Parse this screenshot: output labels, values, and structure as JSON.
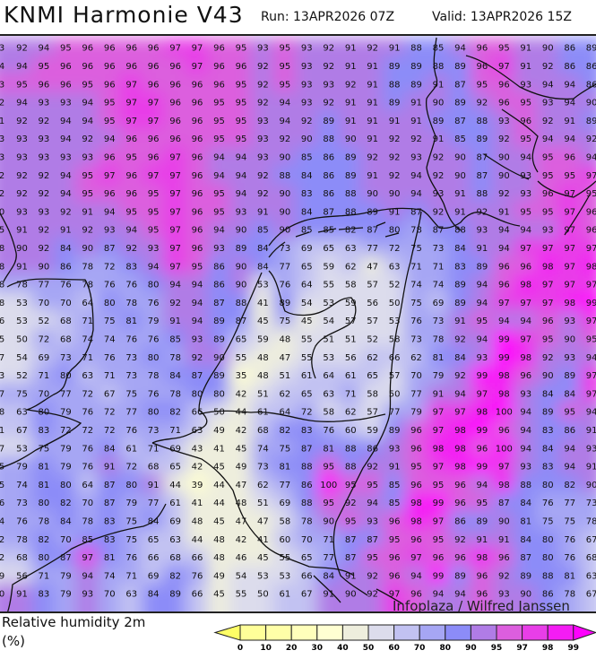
{
  "header": {
    "title": "KNMI Harmonie V43",
    "run": "Run: 13APR2026 07Z",
    "valid": "Valid: 13APR2026 15Z"
  },
  "legend": {
    "title": "Relative humidity 2m",
    "unit": "(%)",
    "ticks": [
      "0",
      "10",
      "20",
      "30",
      "40",
      "50",
      "60",
      "70",
      "80",
      "90",
      "95",
      "97",
      "98",
      "99"
    ],
    "colors": [
      "#ffff99",
      "#ffffa8",
      "#ffffbb",
      "#ffffd2",
      "#eeeedd",
      "#dcdcec",
      "#c2c2f2",
      "#a6a6f4",
      "#8c8cf8",
      "#b07ce6",
      "#dc5ede",
      "#e83ee8",
      "#f41cf4",
      "#ff00ff"
    ],
    "under_color": "#ffff66",
    "over_color": "#ff00ff"
  },
  "watermark": "Infoplaza / Wilfred Janssen",
  "grid": {
    "rows": [
      [
        "3",
        92,
        94,
        95,
        96,
        96,
        96,
        96,
        97,
        97,
        96,
        95,
        93,
        95,
        93,
        92,
        91,
        92,
        91,
        88,
        85,
        94,
        96,
        95,
        91,
        90,
        86,
        89
      ],
      [
        "4",
        94,
        95,
        96,
        96,
        96,
        96,
        96,
        96,
        97,
        96,
        96,
        92,
        95,
        93,
        92,
        91,
        91,
        89,
        89,
        88,
        89,
        96,
        97,
        91,
        92,
        86,
        86
      ],
      [
        "3",
        95,
        96,
        96,
        95,
        96,
        97,
        96,
        96,
        96,
        96,
        95,
        92,
        95,
        93,
        93,
        92,
        91,
        88,
        89,
        91,
        87,
        95,
        96,
        93,
        94,
        94,
        86
      ],
      [
        "2",
        94,
        93,
        93,
        94,
        95,
        97,
        97,
        96,
        96,
        95,
        95,
        92,
        94,
        93,
        92,
        91,
        91,
        89,
        91,
        90,
        89,
        92,
        96,
        95,
        93,
        94,
        90
      ],
      [
        "1",
        92,
        92,
        94,
        94,
        95,
        97,
        97,
        96,
        96,
        95,
        95,
        93,
        94,
        92,
        89,
        91,
        91,
        91,
        91,
        89,
        87,
        88,
        93,
        96,
        92,
        91,
        89
      ],
      [
        "3",
        93,
        93,
        94,
        92,
        94,
        96,
        96,
        96,
        96,
        95,
        95,
        93,
        92,
        90,
        88,
        90,
        91,
        92,
        92,
        91,
        85,
        89,
        92,
        95,
        94,
        94,
        92
      ],
      [
        "3",
        93,
        93,
        93,
        93,
        96,
        95,
        96,
        97,
        96,
        94,
        94,
        93,
        90,
        85,
        86,
        89,
        92,
        92,
        93,
        92,
        90,
        87,
        90,
        94,
        95,
        96,
        94
      ],
      [
        "2",
        92,
        92,
        94,
        95,
        97,
        96,
        97,
        97,
        96,
        94,
        94,
        92,
        88,
        84,
        86,
        89,
        91,
        92,
        94,
        92,
        90,
        87,
        90,
        93,
        95,
        95,
        97
      ],
      [
        "2",
        92,
        92,
        94,
        95,
        96,
        96,
        95,
        97,
        96,
        95,
        94,
        92,
        90,
        83,
        86,
        88,
        90,
        90,
        94,
        93,
        91,
        88,
        92,
        93,
        96,
        97,
        95
      ],
      [
        "0",
        93,
        93,
        92,
        91,
        94,
        95,
        95,
        97,
        96,
        95,
        93,
        91,
        90,
        84,
        87,
        88,
        89,
        91,
        87,
        92,
        91,
        92,
        91,
        95,
        95,
        97,
        96
      ],
      [
        "5",
        91,
        92,
        91,
        92,
        93,
        94,
        95,
        97,
        96,
        94,
        90,
        85,
        90,
        85,
        85,
        82,
        87,
        80,
        78,
        87,
        88,
        93,
        94,
        94,
        93,
        97,
        96
      ],
      [
        "8",
        90,
        92,
        84,
        90,
        87,
        92,
        93,
        97,
        96,
        93,
        89,
        84,
        73,
        69,
        65,
        63,
        77,
        72,
        75,
        73,
        84,
        91,
        94,
        97,
        97,
        97,
        97
      ],
      [
        "8",
        91,
        90,
        86,
        78,
        72,
        83,
        94,
        97,
        95,
        86,
        90,
        84,
        77,
        65,
        59,
        62,
        47,
        63,
        71,
        71,
        83,
        89,
        96,
        96,
        98,
        97,
        98
      ],
      [
        "8",
        78,
        77,
        76,
        78,
        76,
        76,
        80,
        94,
        94,
        86,
        90,
        53,
        76,
        64,
        55,
        58,
        57,
        52,
        74,
        74,
        89,
        94,
        96,
        98,
        97,
        97,
        97
      ],
      [
        "8",
        53,
        70,
        70,
        64,
        80,
        78,
        76,
        92,
        94,
        87,
        88,
        41,
        89,
        54,
        53,
        59,
        56,
        50,
        75,
        69,
        89,
        94,
        97,
        97,
        97,
        98,
        99
      ],
      [
        "6",
        53,
        52,
        68,
        71,
        75,
        81,
        79,
        91,
        94,
        89,
        87,
        45,
        75,
        45,
        54,
        57,
        57,
        53,
        76,
        73,
        91,
        95,
        94,
        94,
        96,
        93,
        97
      ],
      [
        "5",
        50,
        72,
        68,
        74,
        74,
        76,
        76,
        85,
        93,
        89,
        65,
        59,
        48,
        55,
        51,
        51,
        52,
        58,
        73,
        78,
        92,
        94,
        99,
        97,
        95,
        90,
        95
      ],
      [
        "7",
        54,
        69,
        73,
        71,
        76,
        73,
        80,
        78,
        92,
        90,
        55,
        48,
        47,
        55,
        53,
        56,
        62,
        66,
        62,
        81,
        84,
        93,
        99,
        98,
        92,
        93,
        94
      ],
      [
        "3",
        52,
        71,
        80,
        63,
        71,
        73,
        78,
        84,
        87,
        89,
        35,
        48,
        51,
        61,
        64,
        61,
        65,
        57,
        70,
        79,
        92,
        99,
        98,
        96,
        90,
        89,
        97
      ],
      [
        "7",
        75,
        70,
        77,
        72,
        67,
        75,
        76,
        78,
        80,
        80,
        42,
        51,
        62,
        65,
        63,
        71,
        58,
        50,
        77,
        91,
        94,
        97,
        98,
        93,
        84,
        84,
        97
      ],
      [
        "8",
        63,
        80,
        79,
        76,
        72,
        77,
        80,
        82,
        66,
        50,
        44,
        61,
        64,
        72,
        58,
        62,
        57,
        77,
        79,
        97,
        97,
        98,
        100,
        94,
        89,
        95,
        94
      ],
      [
        "1",
        67,
        83,
        72,
        72,
        72,
        76,
        73,
        71,
        63,
        49,
        42,
        68,
        82,
        83,
        76,
        60,
        59,
        89,
        96,
        97,
        98,
        99,
        96,
        94,
        83,
        86,
        91
      ],
      [
        "7",
        53,
        75,
        79,
        76,
        84,
        61,
        71,
        69,
        43,
        41,
        45,
        74,
        75,
        87,
        81,
        88,
        86,
        93,
        96,
        98,
        98,
        96,
        100,
        94,
        84,
        94,
        93
      ],
      [
        "5",
        79,
        81,
        79,
        76,
        91,
        72,
        68,
        65,
        42,
        45,
        49,
        73,
        81,
        88,
        95,
        88,
        92,
        91,
        95,
        97,
        98,
        99,
        97,
        93,
        83,
        94,
        91
      ],
      [
        "5",
        74,
        81,
        80,
        64,
        87,
        80,
        91,
        44,
        39,
        44,
        47,
        62,
        77,
        86,
        100,
        95,
        95,
        85,
        96,
        95,
        96,
        94,
        98,
        88,
        80,
        82,
        90
      ],
      [
        "6",
        73,
        80,
        82,
        70,
        87,
        79,
        77,
        61,
        41,
        44,
        48,
        51,
        69,
        88,
        95,
        92,
        94,
        85,
        98,
        99,
        96,
        95,
        87,
        84,
        76,
        77,
        73
      ],
      [
        "4",
        76,
        78,
        84,
        78,
        83,
        75,
        84,
        69,
        48,
        45,
        47,
        47,
        58,
        78,
        90,
        95,
        93,
        96,
        98,
        97,
        86,
        89,
        90,
        81,
        75,
        75,
        78
      ],
      [
        "2",
        78,
        82,
        70,
        85,
        83,
        75,
        65,
        63,
        44,
        48,
        42,
        41,
        60,
        70,
        71,
        87,
        87,
        95,
        96,
        95,
        92,
        91,
        91,
        84,
        80,
        76,
        67
      ],
      [
        "2",
        68,
        80,
        87,
        97,
        81,
        76,
        66,
        68,
        66,
        48,
        46,
        45,
        55,
        65,
        77,
        87,
        95,
        96,
        97,
        96,
        96,
        98,
        96,
        87,
        80,
        76,
        68
      ],
      [
        "9",
        56,
        71,
        79,
        94,
        74,
        71,
        69,
        82,
        76,
        49,
        54,
        53,
        53,
        66,
        84,
        91,
        92,
        96,
        94,
        99,
        89,
        96,
        92,
        89,
        88,
        81,
        63
      ],
      [
        "0",
        91,
        83,
        79,
        93,
        70,
        63,
        84,
        89,
        66,
        45,
        55,
        50,
        61,
        67,
        91,
        90,
        92,
        97,
        96,
        94,
        94,
        96,
        93,
        90,
        86,
        78,
        67
      ]
    ]
  }
}
